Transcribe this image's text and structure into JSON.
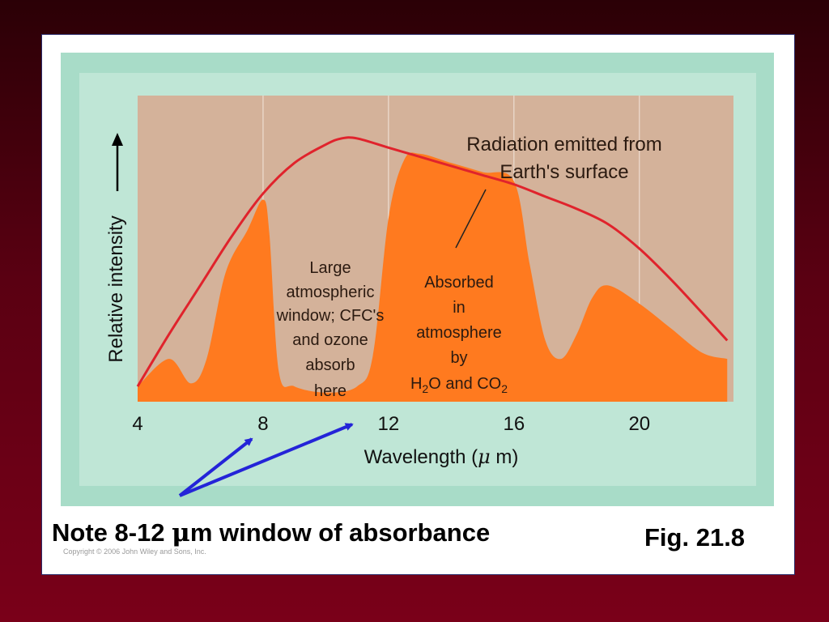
{
  "slide": {
    "note_prefix": "Note 8-12 ",
    "note_micro": "μ",
    "note_suffix": "m window of absorbance",
    "fig_label": "Fig. 21.8",
    "copyright": "Copyright © 2006 John Wiley and Sons, Inc."
  },
  "colors": {
    "plot_bg": "#d4b29a",
    "absorbed_fill": "#ff7a1f",
    "emission_curve": "#e0232c",
    "arrow": "#2424d8",
    "frame": "#a8dcc8"
  },
  "chart_data": {
    "type": "area",
    "xlabel_prefix": "Wavelength (",
    "xlabel_mu": "μ",
    "xlabel_suffix": " m)",
    "ylabel": "Relative intensity",
    "xlim": [
      4,
      23
    ],
    "ylim": [
      0,
      1
    ],
    "xticks": [
      4,
      8,
      12,
      16,
      20
    ],
    "grid": true,
    "series": [
      {
        "name": "Radiation emitted from Earth's surface",
        "x": [
          4,
          5,
          6,
          7,
          8,
          9,
          10,
          10.5,
          11,
          12,
          13,
          14,
          15,
          16,
          17,
          18,
          19,
          20,
          21,
          22,
          22.8
        ],
        "y": [
          0.05,
          0.22,
          0.38,
          0.54,
          0.68,
          0.78,
          0.84,
          0.86,
          0.86,
          0.83,
          0.8,
          0.77,
          0.74,
          0.71,
          0.67,
          0.63,
          0.58,
          0.5,
          0.4,
          0.29,
          0.2
        ]
      },
      {
        "name": "Absorbed in atmosphere",
        "x": [
          4,
          5,
          5.7,
          6.2,
          6.8,
          7.5,
          8,
          8.2,
          8.5,
          9,
          10,
          11,
          11.5,
          12,
          12.5,
          13,
          14,
          15,
          16,
          16.5,
          17,
          17.5,
          18,
          18.5,
          19,
          20,
          21,
          22,
          22.8
        ],
        "y": [
          0.05,
          0.14,
          0.06,
          0.14,
          0.42,
          0.56,
          0.66,
          0.55,
          0.1,
          0.05,
          0.03,
          0.05,
          0.15,
          0.6,
          0.79,
          0.81,
          0.78,
          0.75,
          0.72,
          0.45,
          0.2,
          0.14,
          0.22,
          0.34,
          0.38,
          0.32,
          0.24,
          0.16,
          0.14
        ]
      }
    ],
    "annotations": [
      {
        "text_lines": [
          "Radiation emitted from",
          "Earth's surface"
        ]
      },
      {
        "text_lines": [
          "Large",
          "atmospheric",
          "window; CFC's",
          "and ozone",
          "absorb",
          "here"
        ]
      },
      {
        "text_lines": [
          "Absorbed",
          "in",
          "atmosphere",
          "by"
        ]
      },
      {
        "parts": [
          "H",
          "2",
          "O and CO",
          "2"
        ]
      }
    ],
    "window_arrow_targets": [
      8,
      11.2
    ]
  }
}
